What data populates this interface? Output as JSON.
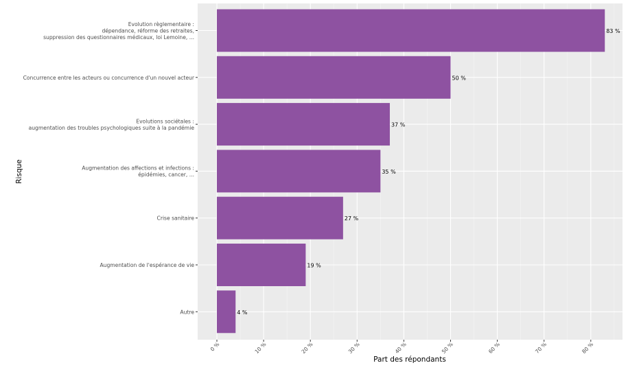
{
  "chart_data": {
    "type": "bar",
    "orientation": "horizontal",
    "xlabel": "Part des répondants",
    "ylabel": "Risque",
    "xlim": [
      0,
      85
    ],
    "xticks": [
      0,
      10,
      20,
      30,
      40,
      50,
      60,
      70,
      80
    ],
    "xtick_labels": [
      "0 %",
      "10 %",
      "20 %",
      "30 %",
      "40 %",
      "50 %",
      "60 %",
      "70 %",
      "80 %"
    ],
    "grid": true,
    "bar_color": "#8E52A1",
    "panel_color": "#EBEBEB",
    "categories": [
      [
        "Evolution règlementaire :",
        "dépendance, réforme des retraites,",
        "suppression des questionnaires médicaux, loi Lemoine, ..."
      ],
      [
        "Concurrence entre les acteurs ou concurrence d'un nouvel acteur"
      ],
      [
        "Evolutions sociétales :",
        "augmentation des troubles psychologiques suite à la pandémie"
      ],
      [
        "Augmentation des affections et infections :",
        "épidémies, cancer, ..."
      ],
      [
        "Crise sanitaire"
      ],
      [
        "Augmentation de l'espérance de vie"
      ],
      [
        "Autre"
      ]
    ],
    "values": [
      83,
      50,
      37,
      35,
      27,
      19,
      4
    ],
    "data_labels": [
      "83 %",
      "50 %",
      "37 %",
      "35 %",
      "27 %",
      "19 %",
      "4 %"
    ]
  }
}
